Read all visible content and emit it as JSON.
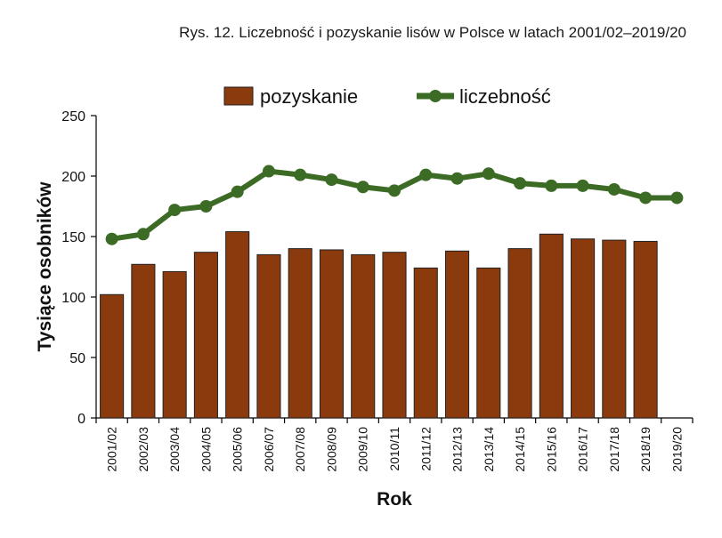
{
  "chart_data": {
    "type": "bar",
    "title": "Rys. 12. Liczebność i pozyskanie lisów w Polsce w latach 2001/02–2019/20",
    "xlabel": "Rok",
    "ylabel": "Tysiące osobników",
    "ylim": [
      0,
      250
    ],
    "yticks": [
      "0",
      "50",
      "100",
      "150",
      "200",
      "250"
    ],
    "categories": [
      "2001/02",
      "2002/03",
      "2003/04",
      "2004/05",
      "2005/06",
      "2006/07",
      "2007/08",
      "2008/09",
      "2009/10",
      "2010/11",
      "2011/12",
      "2012/13",
      "2013/14",
      "2014/15",
      "2015/16",
      "2016/17",
      "2017/18",
      "2018/19",
      "2019/20"
    ],
    "legend_position": "top",
    "grid": false,
    "series": [
      {
        "name": "pozyskanie",
        "type": "bar",
        "color": "#8B3A0E",
        "values": [
          102,
          127,
          121,
          137,
          154,
          135,
          140,
          139,
          135,
          137,
          124,
          138,
          124,
          140,
          152,
          148,
          147,
          146,
          null
        ]
      },
      {
        "name": "liczebność",
        "type": "line",
        "color": "#3B6B24",
        "values": [
          148,
          152,
          172,
          175,
          187,
          204,
          201,
          197,
          191,
          188,
          201,
          198,
          202,
          194,
          192,
          192,
          189,
          182,
          182
        ]
      }
    ]
  }
}
